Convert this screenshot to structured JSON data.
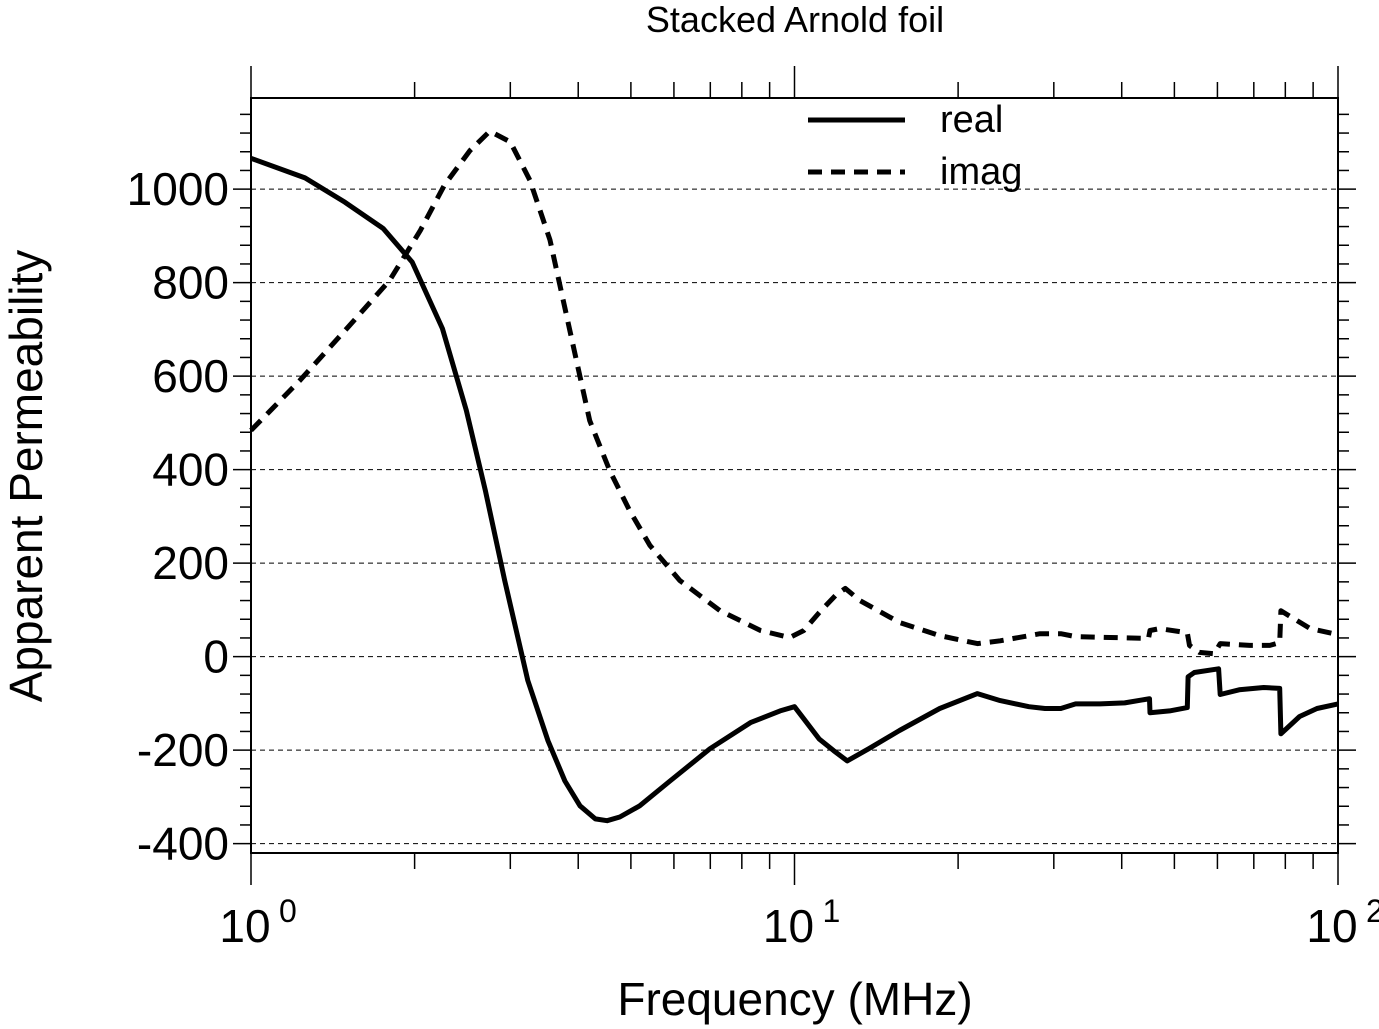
{
  "chart_data": {
    "type": "line",
    "title": "Stacked Arnold foil",
    "xlabel": "Frequency (MHz)",
    "ylabel": "Apparent Permeability",
    "xscale": "log",
    "xlim": [
      1,
      100
    ],
    "ylim": [
      -420,
      1195
    ],
    "x_ticks": [
      {
        "base": "10",
        "exp": "0",
        "value": 1
      },
      {
        "base": "10",
        "exp": "1",
        "value": 10
      },
      {
        "base": "10",
        "exp": "2",
        "value": 100
      }
    ],
    "y_ticks": [
      -400,
      -200,
      0,
      200,
      400,
      600,
      800,
      1000
    ],
    "grid": "horizontal dashed at y ticks",
    "legend_position": "top-center",
    "series": [
      {
        "name": "real",
        "style": "solid",
        "color": "#000000",
        "points": [
          [
            1,
            1066
          ],
          [
            1.257,
            1024
          ],
          [
            1.489,
            972
          ],
          [
            1.75,
            916
          ],
          [
            1.98,
            844
          ],
          [
            2.25,
            702
          ],
          [
            2.49,
            527
          ],
          [
            2.7,
            355
          ],
          [
            2.93,
            163
          ],
          [
            3.23,
            -51
          ],
          [
            3.52,
            -180
          ],
          [
            3.78,
            -266
          ],
          [
            4.03,
            -319
          ],
          [
            4.3,
            -347
          ],
          [
            4.52,
            -351
          ],
          [
            4.77,
            -343
          ],
          [
            5.19,
            -319
          ],
          [
            5.9,
            -266
          ],
          [
            6.99,
            -197
          ],
          [
            8.3,
            -141
          ],
          [
            9.41,
            -116
          ],
          [
            10.0,
            -107
          ],
          [
            10.4,
            -133
          ],
          [
            11.1,
            -176
          ],
          [
            11.8,
            -201
          ],
          [
            12.5,
            -223
          ],
          [
            13.7,
            -197
          ],
          [
            15.6,
            -158
          ],
          [
            18.5,
            -111
          ],
          [
            21.7,
            -79
          ],
          [
            23.9,
            -94
          ],
          [
            27.0,
            -107
          ],
          [
            28.9,
            -111
          ],
          [
            30.9,
            -111
          ],
          [
            32.9,
            -101
          ],
          [
            36.5,
            -101
          ],
          [
            40.5,
            -99
          ],
          [
            45.0,
            -90
          ],
          [
            45.1,
            -120
          ],
          [
            49.0,
            -116
          ],
          [
            52.8,
            -109
          ],
          [
            53.0,
            -43
          ],
          [
            54.4,
            -34
          ],
          [
            60.3,
            -26
          ],
          [
            60.7,
            -81
          ],
          [
            65.8,
            -71
          ],
          [
            73.0,
            -66
          ],
          [
            78.1,
            -68
          ],
          [
            78.5,
            -165
          ],
          [
            85.0,
            -128
          ],
          [
            91.5,
            -111
          ],
          [
            100,
            -101
          ]
        ]
      },
      {
        "name": "imag",
        "style": "dashed",
        "color": "#000000",
        "points": [
          [
            1,
            484
          ],
          [
            1.23,
            591
          ],
          [
            1.52,
            709
          ],
          [
            1.8,
            805
          ],
          [
            2.05,
            912
          ],
          [
            2.27,
            1009
          ],
          [
            2.53,
            1083
          ],
          [
            2.75,
            1124
          ],
          [
            3.0,
            1101
          ],
          [
            3.26,
            1019
          ],
          [
            3.55,
            891
          ],
          [
            3.86,
            698
          ],
          [
            4.2,
            505
          ],
          [
            4.57,
            398
          ],
          [
            4.97,
            313
          ],
          [
            5.42,
            238
          ],
          [
            6.15,
            163
          ],
          [
            7.3,
            98
          ],
          [
            8.66,
            56
          ],
          [
            9.8,
            41
          ],
          [
            10.4,
            56
          ],
          [
            11.1,
            94
          ],
          [
            11.9,
            131
          ],
          [
            12.4,
            146
          ],
          [
            13.2,
            120
          ],
          [
            15.6,
            73
          ],
          [
            18.5,
            45
          ],
          [
            21.7,
            28
          ],
          [
            23.9,
            34
          ],
          [
            28.3,
            49
          ],
          [
            30.9,
            49
          ],
          [
            32.9,
            43
          ],
          [
            38.1,
            41
          ],
          [
            44.8,
            39
          ],
          [
            45.1,
            56
          ],
          [
            47.0,
            60
          ],
          [
            52.8,
            51
          ],
          [
            53.3,
            24
          ],
          [
            55.6,
            9
          ],
          [
            59.2,
            6
          ],
          [
            60.7,
            28
          ],
          [
            68.8,
            24
          ],
          [
            74.9,
            24
          ],
          [
            78.1,
            30
          ],
          [
            78.5,
            98
          ],
          [
            81.1,
            88
          ],
          [
            88.9,
            60
          ],
          [
            100,
            47
          ]
        ]
      }
    ]
  }
}
